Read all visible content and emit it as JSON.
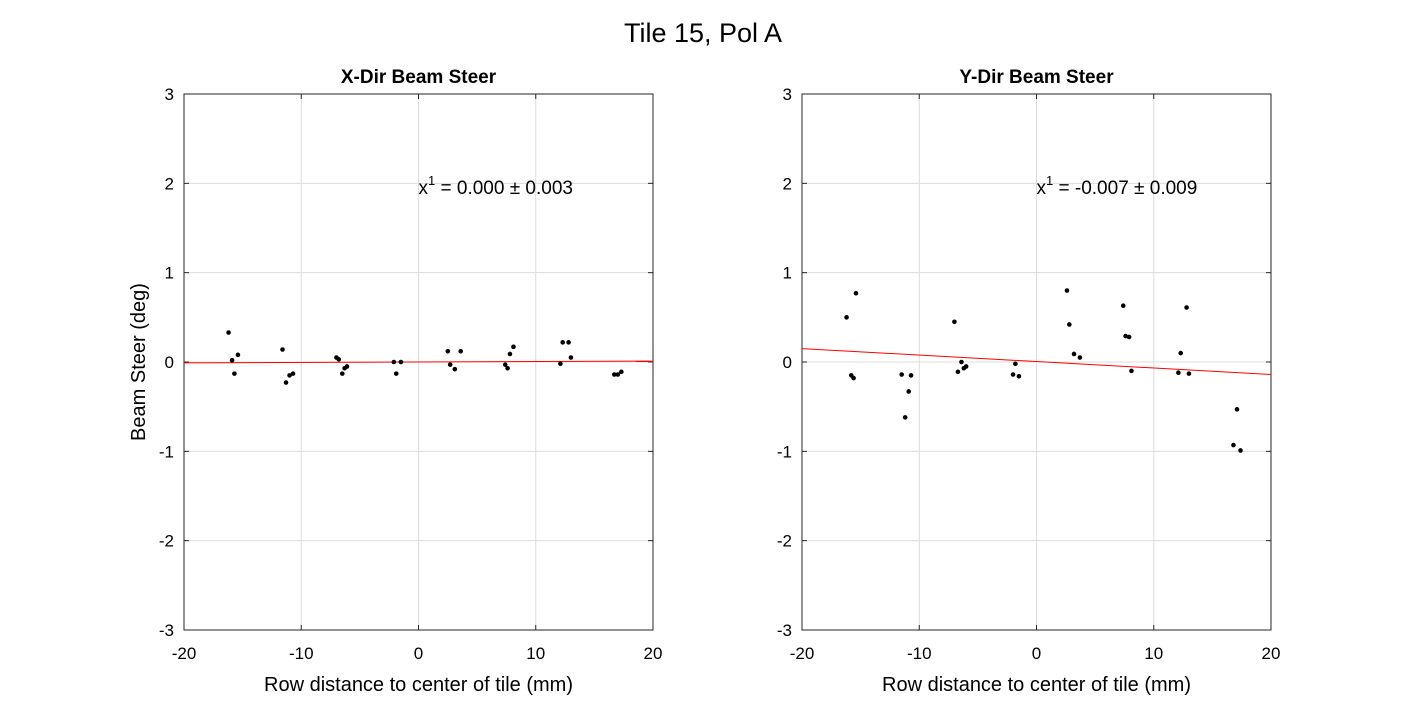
{
  "figure_title": "Tile 15, Pol A",
  "chart_data": [
    {
      "type": "scatter",
      "title": "X-Dir Beam Steer",
      "xlabel": "Row distance to center of tile (mm)",
      "ylabel": "Beam Steer (deg)",
      "xlim": [
        -20,
        20
      ],
      "ylim": [
        -3,
        3
      ],
      "xticks": [
        -20,
        -10,
        0,
        10,
        20
      ],
      "yticks": [
        -3,
        -2,
        -1,
        0,
        1,
        2,
        3
      ],
      "grid": true,
      "annotation": {
        "base": "x",
        "exponent": "1",
        "text": " = 0.000 ± 0.003",
        "x": 0,
        "y": 1.95
      },
      "fit_line": {
        "color": "#ff0000",
        "x": [
          -20,
          20
        ],
        "y": [
          -0.01,
          0.01
        ]
      },
      "points": [
        [
          -16.2,
          0.33
        ],
        [
          -15.9,
          0.02
        ],
        [
          -15.7,
          -0.13
        ],
        [
          -15.4,
          0.08
        ],
        [
          -11.6,
          0.14
        ],
        [
          -11.3,
          -0.23
        ],
        [
          -11.0,
          -0.15
        ],
        [
          -10.7,
          -0.13
        ],
        [
          -7.0,
          0.05
        ],
        [
          -6.8,
          0.03
        ],
        [
          -6.5,
          -0.13
        ],
        [
          -6.3,
          -0.07
        ],
        [
          -6.1,
          -0.05
        ],
        [
          -2.1,
          0.0
        ],
        [
          -1.9,
          -0.13
        ],
        [
          -1.5,
          0.0
        ],
        [
          2.5,
          0.12
        ],
        [
          2.7,
          -0.03
        ],
        [
          3.1,
          -0.08
        ],
        [
          3.6,
          0.12
        ],
        [
          7.4,
          -0.03
        ],
        [
          7.6,
          -0.07
        ],
        [
          7.8,
          0.09
        ],
        [
          8.1,
          0.17
        ],
        [
          12.1,
          -0.02
        ],
        [
          12.3,
          0.22
        ],
        [
          12.8,
          0.22
        ],
        [
          13.0,
          0.05
        ],
        [
          16.7,
          -0.14
        ],
        [
          17.0,
          -0.14
        ],
        [
          17.3,
          -0.11
        ]
      ]
    },
    {
      "type": "scatter",
      "title": "Y-Dir Beam Steer",
      "xlabel": "Row distance to center of tile (mm)",
      "ylabel": "",
      "xlim": [
        -20,
        20
      ],
      "ylim": [
        -3,
        3
      ],
      "xticks": [
        -20,
        -10,
        0,
        10,
        20
      ],
      "yticks": [
        -3,
        -2,
        -1,
        0,
        1,
        2,
        3
      ],
      "grid": true,
      "annotation": {
        "base": "x",
        "exponent": "1",
        "text": " = -0.007 ± 0.009",
        "x": 0,
        "y": 1.95
      },
      "fit_line": {
        "color": "#ff0000",
        "x": [
          -20,
          20
        ],
        "y": [
          0.15,
          -0.14
        ]
      },
      "points": [
        [
          -16.2,
          0.5
        ],
        [
          -15.8,
          -0.15
        ],
        [
          -15.6,
          -0.18
        ],
        [
          -15.4,
          0.77
        ],
        [
          -11.5,
          -0.14
        ],
        [
          -11.2,
          -0.62
        ],
        [
          -10.9,
          -0.33
        ],
        [
          -10.7,
          -0.15
        ],
        [
          -7.0,
          0.45
        ],
        [
          -6.7,
          -0.11
        ],
        [
          -6.4,
          0.0
        ],
        [
          -6.2,
          -0.07
        ],
        [
          -6.0,
          -0.05
        ],
        [
          -2.0,
          -0.14
        ],
        [
          -1.8,
          -0.02
        ],
        [
          -1.5,
          -0.16
        ],
        [
          2.6,
          0.8
        ],
        [
          2.8,
          0.42
        ],
        [
          3.2,
          0.09
        ],
        [
          3.7,
          0.05
        ],
        [
          7.4,
          0.63
        ],
        [
          7.6,
          0.29
        ],
        [
          7.9,
          0.28
        ],
        [
          8.1,
          -0.1
        ],
        [
          12.1,
          -0.12
        ],
        [
          12.3,
          0.1
        ],
        [
          12.8,
          0.61
        ],
        [
          13.0,
          -0.13
        ],
        [
          16.8,
          -0.93
        ],
        [
          17.1,
          -0.53
        ],
        [
          17.4,
          -0.99
        ]
      ]
    }
  ]
}
